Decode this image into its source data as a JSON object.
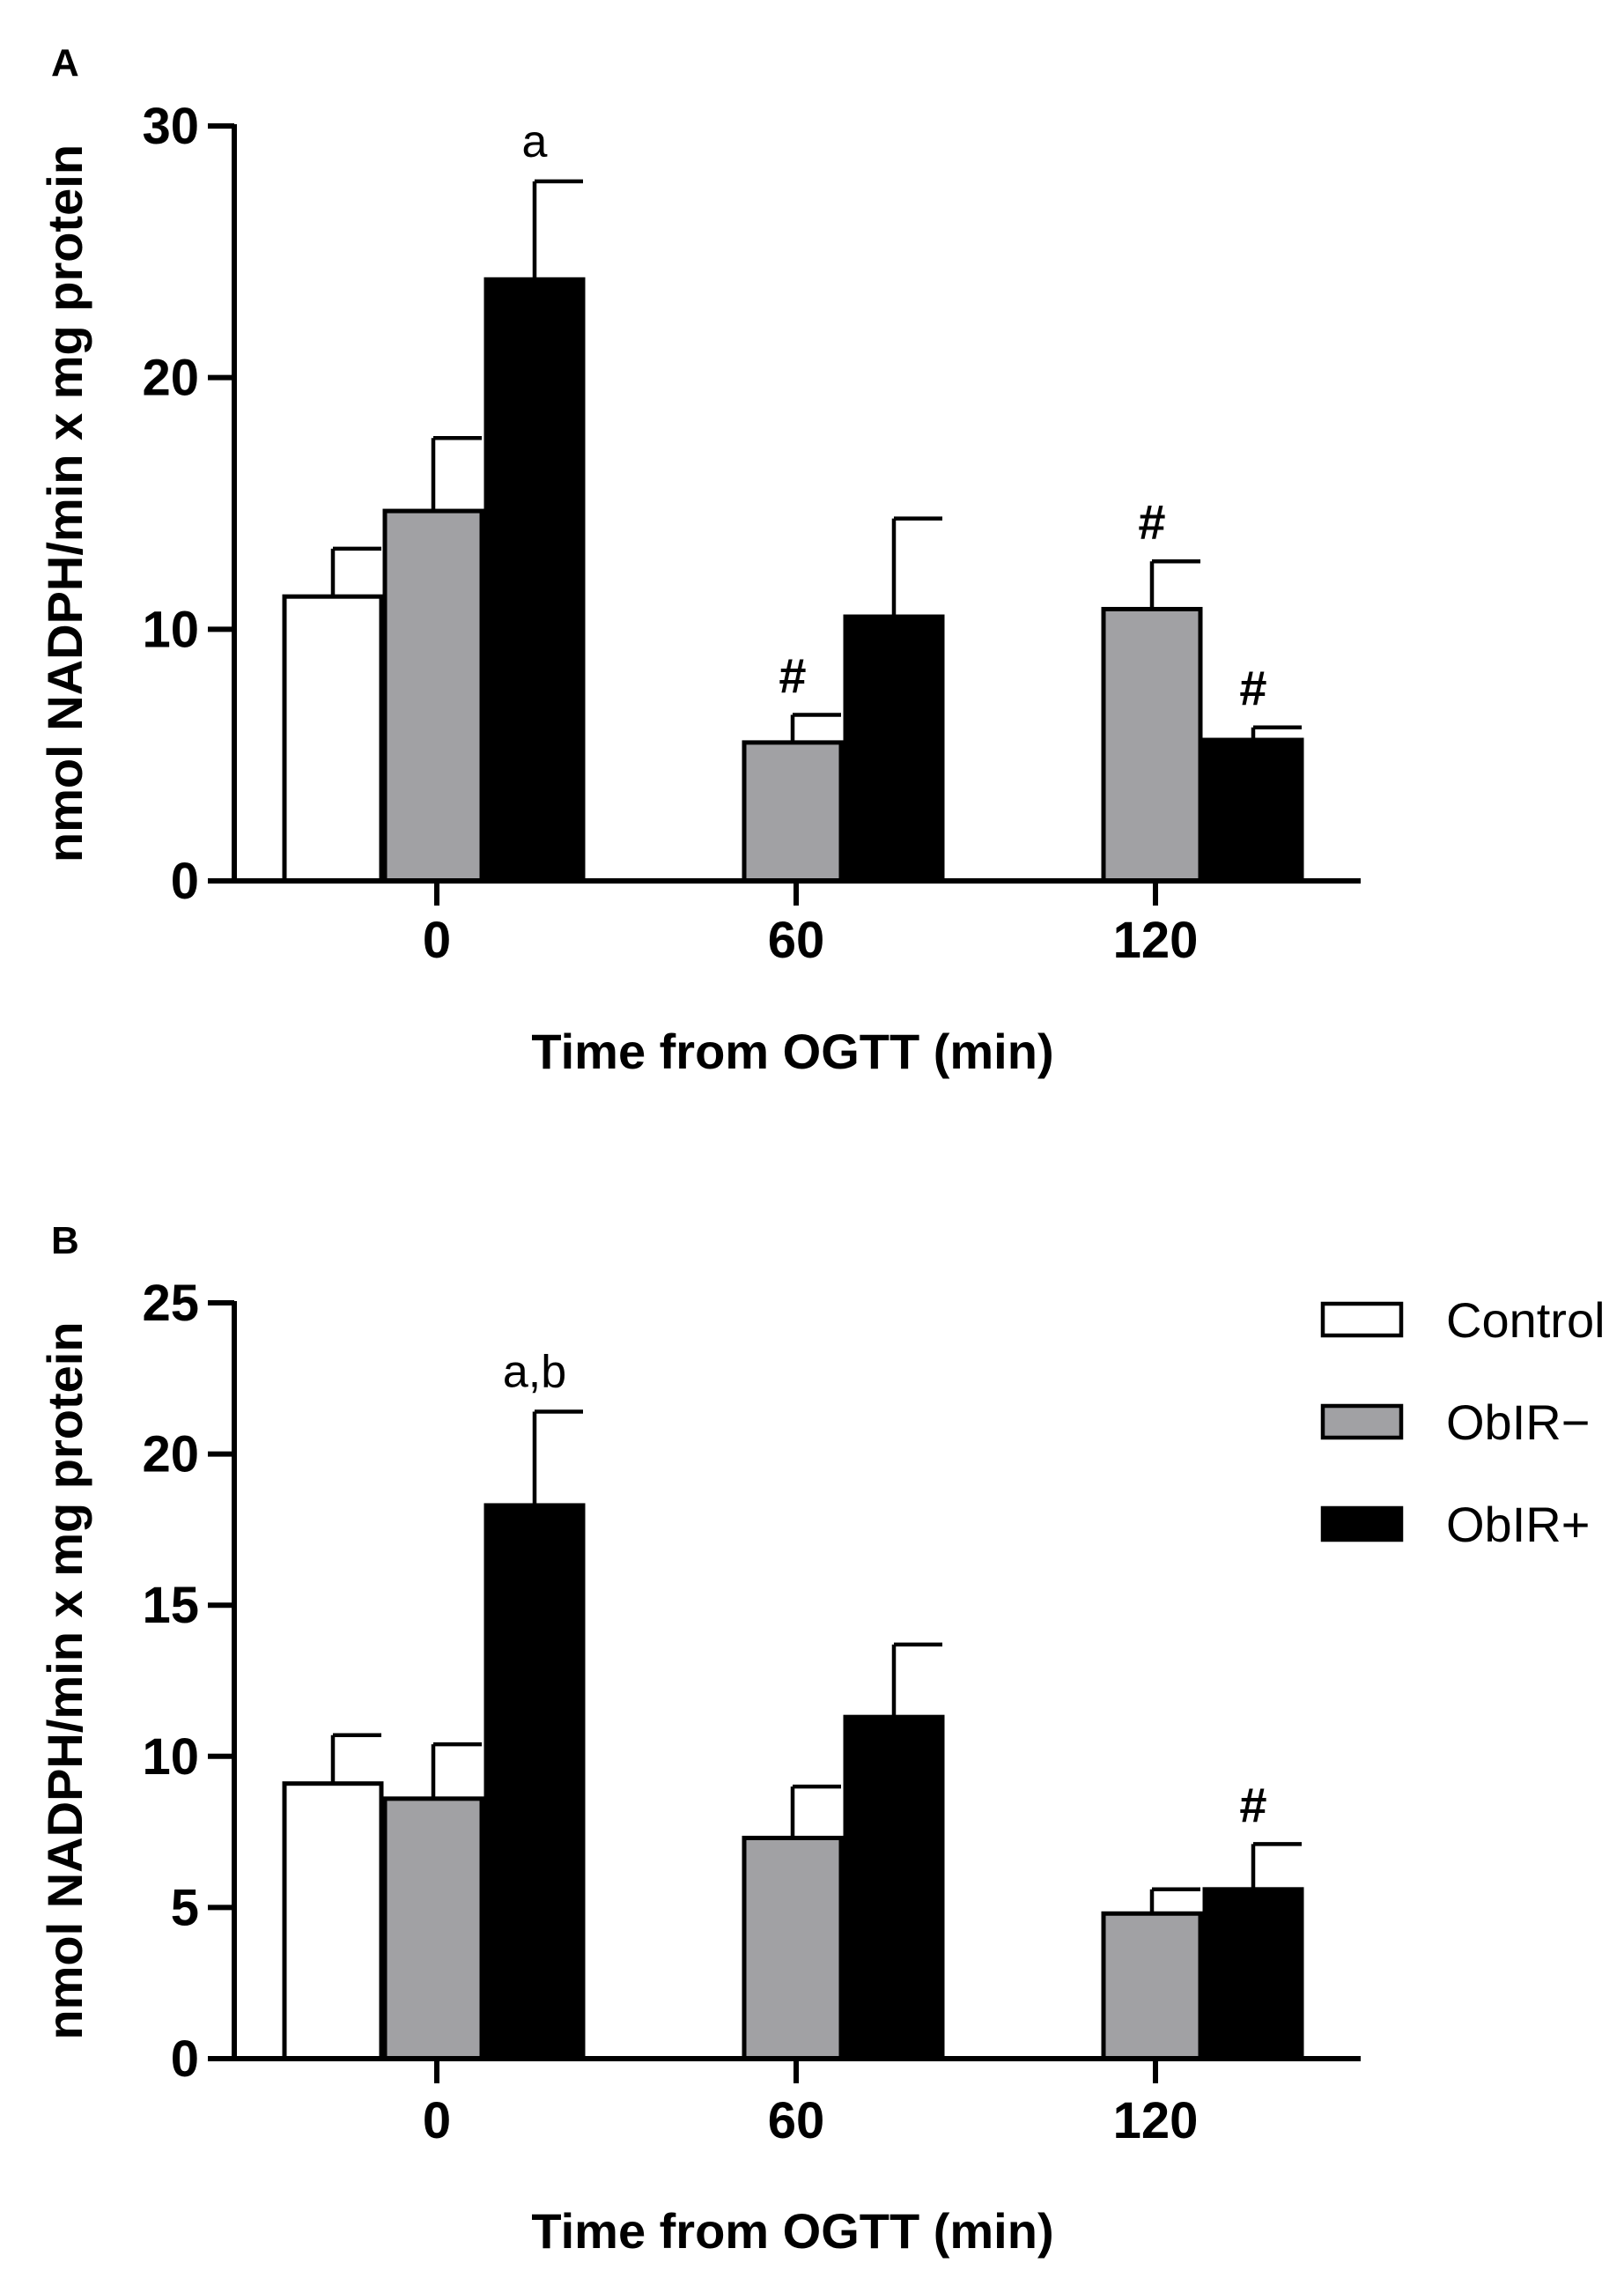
{
  "chart_data": [
    {
      "type": "bar",
      "panel_label": "A",
      "categories": [
        "0",
        "60",
        "120"
      ],
      "xlabel": "Time from OGTT (min)",
      "ylabel": "nmol NADPH/min x mg protein",
      "ylim": [
        0,
        30
      ],
      "yticks": [
        "0",
        "10",
        "20",
        "30"
      ],
      "series": [
        {
          "name": "Control",
          "color": "#ffffff",
          "values": [
            11.3,
            null,
            null
          ],
          "errors": [
            1.9,
            null,
            null
          ],
          "annotations": [
            "",
            "",
            ""
          ]
        },
        {
          "name": "ObIR−",
          "color": "#a1a1a4",
          "values": [
            14.7,
            5.5,
            10.8
          ],
          "errors": [
            2.9,
            1.1,
            1.9
          ],
          "annotations": [
            "",
            "#",
            "#"
          ]
        },
        {
          "name": "ObIR+",
          "color": "#000000",
          "values": [
            23.9,
            10.5,
            5.6
          ],
          "errors": [
            3.9,
            3.9,
            0.5
          ],
          "annotations": [
            "a",
            "",
            "#"
          ]
        }
      ]
    },
    {
      "type": "bar",
      "panel_label": "B",
      "categories": [
        "0",
        "60",
        "120"
      ],
      "xlabel": "Time from OGTT (min)",
      "ylabel": "nmol NADPH/min x mg protein",
      "ylim": [
        0,
        25
      ],
      "yticks": [
        "0",
        "5",
        "10",
        "15",
        "20",
        "25"
      ],
      "series": [
        {
          "name": "Control",
          "color": "#ffffff",
          "values": [
            9.1,
            null,
            null
          ],
          "errors": [
            1.6,
            null,
            null
          ],
          "annotations": [
            "",
            "",
            ""
          ]
        },
        {
          "name": "ObIR−",
          "color": "#a1a1a4",
          "values": [
            8.6,
            7.3,
            4.8
          ],
          "errors": [
            1.8,
            1.7,
            0.8
          ],
          "annotations": [
            "",
            "",
            ""
          ]
        },
        {
          "name": "ObIR+",
          "color": "#000000",
          "values": [
            18.3,
            11.3,
            5.6
          ],
          "errors": [
            3.1,
            2.4,
            1.5
          ],
          "annotations": [
            "a,b",
            "",
            "#"
          ]
        }
      ]
    }
  ],
  "legend": [
    {
      "label": "Control",
      "color": "#ffffff"
    },
    {
      "label": "ObIR−",
      "color": "#a1a1a4"
    },
    {
      "label": "ObIR+",
      "color": "#000000"
    }
  ]
}
